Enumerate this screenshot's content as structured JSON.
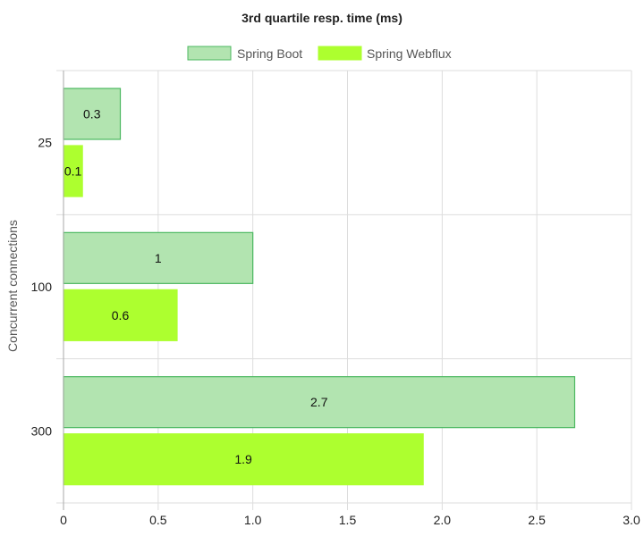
{
  "chart_data": {
    "type": "bar",
    "orientation": "horizontal",
    "title": "3rd quartile resp. time (ms)",
    "ylabel": "Concurrent connections",
    "xlabel": "",
    "categories": [
      "25",
      "100",
      "300"
    ],
    "series": [
      {
        "name": "Spring Boot",
        "values": [
          0.3,
          1,
          2.7
        ],
        "value_labels": [
          "0.3",
          "1",
          "2.7"
        ],
        "fill": "#b2e4b0",
        "stroke": "#4cb860"
      },
      {
        "name": "Spring Webflux",
        "values": [
          0.1,
          0.6,
          1.9
        ],
        "value_labels": [
          "0.1",
          "0.6",
          "1.9"
        ],
        "fill": "#adff2f",
        "stroke": "#adff2f"
      }
    ],
    "xlim": [
      0,
      3.0
    ],
    "xticks": [
      0,
      0.5,
      1.0,
      1.5,
      2.0,
      2.5,
      3.0
    ],
    "xtick_labels": [
      "0",
      "0.5",
      "1.0",
      "1.5",
      "2.0",
      "2.5",
      "3.0"
    ],
    "grid": true,
    "legend_position": "top"
  }
}
